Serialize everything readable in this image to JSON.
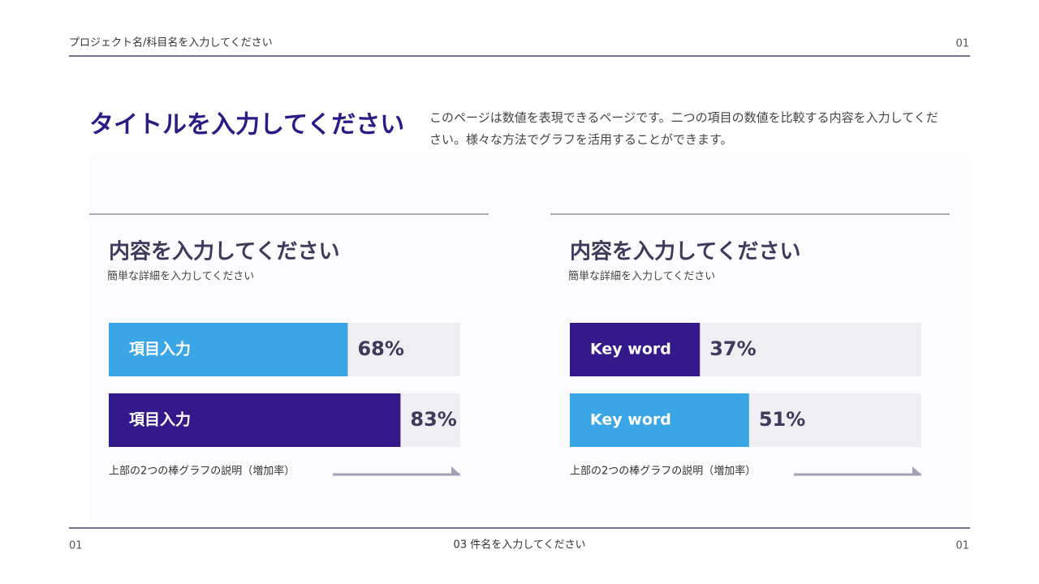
{
  "header": {
    "project": "プロジェクト名/科目名を入力してください",
    "page": "01"
  },
  "title": "タイトルを入力してください",
  "description": "このページは数値を表現できるページです。二つの項目の数値を比較する内容を入力してください。様々な方法でグラフを活用することができます。",
  "chart_data": [
    {
      "type": "bar",
      "orientation": "horizontal",
      "title": "内容を入力してください",
      "subtitle": "簡単な詳細を入力してください",
      "categories": [
        "項目入力",
        "項目入力"
      ],
      "values": [
        68,
        83
      ],
      "value_labels": [
        "68%",
        "83%"
      ],
      "colors": [
        "#3aa6e6",
        "#33198a"
      ],
      "xlim": [
        0,
        100
      ],
      "caption": "上部の2つの棒グラフの説明（増加率）"
    },
    {
      "type": "bar",
      "orientation": "horizontal",
      "title": "内容を入力してください",
      "subtitle": "簡単な詳細を入力してください",
      "categories": [
        "Key word",
        "Key word"
      ],
      "values": [
        37,
        51
      ],
      "value_labels": [
        "37%",
        "51%"
      ],
      "colors": [
        "#33198a",
        "#3aa6e6"
      ],
      "xlim": [
        0,
        100
      ],
      "caption": "上部の2つの棒グラフの説明（増加率）"
    }
  ],
  "footer": {
    "left": "01",
    "center": "03 件名を入力してください",
    "right": "01"
  }
}
